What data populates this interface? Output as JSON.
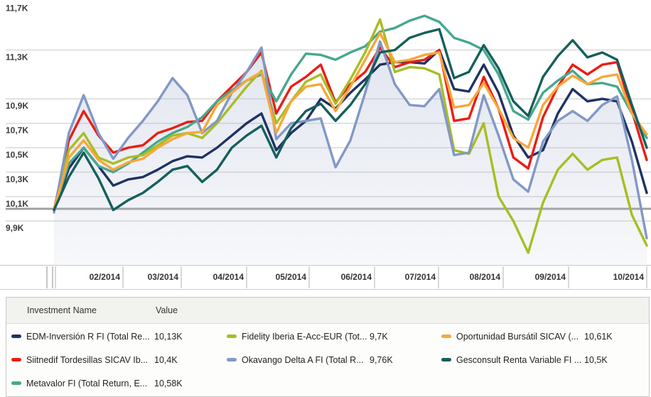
{
  "chart_data": {
    "type": "line",
    "title": "",
    "x_unit": "weekly points, late Jan 2014 to late Oct 2014",
    "x_labels": [
      "02/2014",
      "03/2014",
      "04/2014",
      "05/2014",
      "06/2014",
      "07/2014",
      "08/2014",
      "09/2014",
      "10/2014"
    ],
    "x_axis": {
      "boundaries": [
        8,
        66,
        74,
        78,
        173,
        255,
        347,
        435,
        527,
        617,
        708,
        800,
        910
      ],
      "cells": [
        "",
        "",
        "",
        "02/2014",
        "03/2014",
        "04/2014",
        "05/2014",
        "06/2014",
        "07/2014",
        "08/2014",
        "09/2014",
        "10/2014"
      ]
    },
    "ylim": [
      9.5,
      11.8
    ],
    "y_unit": "K (thousands, index value)",
    "y_ticks": [
      {
        "label": "11,7K",
        "value": 11.7,
        "line": false
      },
      {
        "label": "11,3K",
        "value": 11.3,
        "line": true
      },
      {
        "label": "10,9K",
        "value": 10.9,
        "line": true
      },
      {
        "label": "10,7K",
        "value": 10.7,
        "line": true
      },
      {
        "label": "10,5K",
        "value": 10.5,
        "line": true
      },
      {
        "label": "10,3K",
        "value": 10.3,
        "line": true
      },
      {
        "label": "10,1K",
        "value": 10.1,
        "line": true
      },
      {
        "label": "9,9K",
        "value": 9.9,
        "line": true
      }
    ],
    "baseline": {
      "value": 10.0
    },
    "grid": true,
    "legend_position": "bottom-table",
    "series": [
      {
        "id": "edm",
        "name": "EDM-Inversión R FI (Total Re...",
        "color": "#1e3264",
        "area": false,
        "values": [
          9.99,
          10.33,
          10.5,
          10.35,
          10.19,
          10.24,
          10.26,
          10.32,
          10.39,
          10.43,
          10.42,
          10.5,
          10.6,
          10.7,
          10.78,
          10.48,
          10.62,
          10.72,
          10.9,
          10.82,
          10.95,
          11.06,
          11.18,
          11.2,
          11.2,
          11.19,
          11.3,
          10.98,
          10.96,
          11.18,
          10.95,
          10.6,
          10.42,
          10.48,
          10.78,
          10.98,
          10.88,
          10.9,
          10.88,
          10.55,
          10.13
        ]
      },
      {
        "id": "siitnedif",
        "name": "Siitnedif Tordesillas SICAV Ib...",
        "color": "#eb1d14",
        "area": false,
        "values": [
          9.99,
          10.56,
          10.8,
          10.6,
          10.46,
          10.5,
          10.52,
          10.62,
          10.66,
          10.71,
          10.72,
          10.88,
          11.0,
          11.12,
          11.28,
          10.78,
          11.0,
          11.08,
          11.18,
          10.87,
          11.02,
          11.12,
          11.32,
          11.16,
          11.2,
          11.22,
          11.3,
          10.72,
          10.74,
          11.08,
          10.82,
          10.42,
          10.33,
          10.75,
          11.0,
          11.18,
          11.1,
          11.18,
          11.2,
          10.8,
          10.4
        ]
      },
      {
        "id": "metavalor",
        "name": "Metavalor FI (Total Return, E...",
        "color": "#47a78e",
        "area": false,
        "values": [
          9.99,
          10.37,
          10.5,
          10.35,
          10.3,
          10.37,
          10.46,
          10.55,
          10.62,
          10.67,
          10.75,
          10.88,
          10.97,
          11.05,
          11.1,
          10.88,
          11.1,
          11.27,
          11.26,
          11.22,
          11.28,
          11.33,
          11.45,
          11.48,
          11.54,
          11.58,
          11.53,
          11.4,
          11.36,
          11.3,
          11.1,
          10.8,
          10.73,
          10.95,
          11.05,
          11.13,
          11.02,
          11.03,
          11.0,
          10.78,
          10.58
        ]
      },
      {
        "id": "fidelity",
        "name": "Fidelity Iberia E-Acc-EUR (Tot...",
        "color": "#a8bd23",
        "area": false,
        "values": [
          9.99,
          10.48,
          10.62,
          10.42,
          10.37,
          10.42,
          10.44,
          10.52,
          10.6,
          10.62,
          10.58,
          10.7,
          10.85,
          11.0,
          11.13,
          10.7,
          10.88,
          11.04,
          11.1,
          10.86,
          11.06,
          11.28,
          11.55,
          11.12,
          11.16,
          11.15,
          11.1,
          10.48,
          10.45,
          10.7,
          10.1,
          9.9,
          9.64,
          10.05,
          10.32,
          10.45,
          10.32,
          10.4,
          10.42,
          9.95,
          9.7
        ]
      },
      {
        "id": "okavango",
        "name": "Okavango Delta A FI (Total R...",
        "color": "#8298c5",
        "area": true,
        "values": [
          9.97,
          10.62,
          10.93,
          10.62,
          10.41,
          10.58,
          10.72,
          10.88,
          11.07,
          10.93,
          10.62,
          10.72,
          10.95,
          11.12,
          11.32,
          10.57,
          10.7,
          10.72,
          10.74,
          10.34,
          10.56,
          10.95,
          11.37,
          11.02,
          10.85,
          10.84,
          10.98,
          10.44,
          10.46,
          10.93,
          10.6,
          10.24,
          10.14,
          10.55,
          10.72,
          10.8,
          10.72,
          10.85,
          10.92,
          10.4,
          9.76
        ]
      },
      {
        "id": "oportunidad",
        "name": "Oportunidad Bursátil SICAV (...",
        "color": "#f7a73a",
        "area": false,
        "values": [
          9.99,
          10.42,
          10.56,
          10.4,
          10.32,
          10.38,
          10.41,
          10.5,
          10.57,
          10.62,
          10.63,
          10.85,
          10.95,
          11.05,
          11.12,
          10.62,
          10.88,
          11.0,
          11.02,
          10.8,
          11.0,
          11.22,
          11.44,
          11.2,
          11.22,
          11.26,
          11.28,
          10.83,
          10.85,
          11.03,
          10.82,
          10.58,
          10.5,
          10.85,
          11.0,
          11.09,
          11.02,
          11.08,
          11.1,
          10.78,
          10.61
        ]
      },
      {
        "id": "gesconsult",
        "name": "Gesconsult Renta Variable FI ...",
        "color": "#155f5b",
        "area": false,
        "values": [
          9.99,
          10.26,
          10.46,
          10.25,
          9.99,
          10.07,
          10.13,
          10.22,
          10.32,
          10.35,
          10.22,
          10.32,
          10.5,
          10.6,
          10.68,
          10.42,
          10.66,
          10.8,
          10.86,
          10.72,
          10.85,
          11.02,
          11.28,
          11.3,
          11.4,
          11.44,
          11.47,
          11.07,
          11.12,
          11.34,
          11.15,
          10.88,
          10.76,
          11.08,
          11.25,
          11.38,
          11.24,
          11.28,
          11.22,
          10.85,
          10.5
        ]
      }
    ]
  },
  "legend": {
    "headers": {
      "name": "Investment Name",
      "value": "Value"
    },
    "items": [
      {
        "name": "EDM-Inversión R FI (Total Re...",
        "value": "10,13K",
        "color": "#1e3264"
      },
      {
        "name": "Siitnedif Tordesillas SICAV Ib...",
        "value": "10,4K",
        "color": "#eb1d14"
      },
      {
        "name": "Metavalor FI (Total Return, E...",
        "value": "10,58K",
        "color": "#47a78e"
      },
      {
        "name": "Fidelity Iberia E-Acc-EUR (Tot...",
        "value": "9,7K",
        "color": "#a8bd23"
      },
      {
        "name": "Okavango Delta A FI (Total R...",
        "value": "9,76K",
        "color": "#8298c5"
      },
      {
        "name": "Oportunidad Bursátil SICAV (...",
        "value": "10,61K",
        "color": "#f7a73a"
      },
      {
        "name": "Gesconsult Renta Variable FI ...",
        "value": "10,5K",
        "color": "#155f5b"
      }
    ]
  }
}
